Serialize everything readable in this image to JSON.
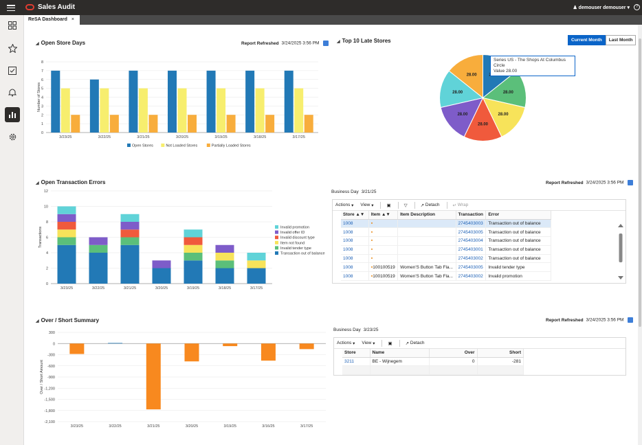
{
  "app": {
    "title": "Sales Audit",
    "user": "demouser demouser",
    "help": "?"
  },
  "tab": {
    "label": "ReSA Dashboard",
    "close": "×"
  },
  "open_store_days": {
    "title": "Open Store Days",
    "refresh_label": "Report Refreshed",
    "refresh_time": "3/24/2025 3:56 PM",
    "chart_data": {
      "type": "bar",
      "categories": [
        "3/23/25",
        "3/22/25",
        "3/21/25",
        "3/20/25",
        "3/19/25",
        "3/18/25",
        "3/17/25"
      ],
      "ylabel": "Number of Stores",
      "ylim": [
        0,
        8
      ],
      "yticks": [
        0,
        1,
        2,
        3,
        4,
        5,
        6,
        7,
        8
      ],
      "series": [
        {
          "name": "Open Stores",
          "color": "#2279b6",
          "values": [
            7,
            6,
            7,
            7,
            7,
            7,
            7
          ]
        },
        {
          "name": "Not Loaded Stores",
          "color": "#f7ee6e",
          "values": [
            5,
            5,
            5,
            5,
            5,
            5,
            5
          ]
        },
        {
          "name": "Partially Loaded Stores",
          "color": "#f8ad3c",
          "values": [
            2,
            2,
            2,
            2,
            2,
            2,
            2
          ]
        }
      ]
    }
  },
  "late_stores": {
    "title": "Top 10 Late Stores",
    "btn_current": "Current Month",
    "btn_last": "Last Month",
    "tooltip_series": "Series  US - The Shops At Columbus  Circle",
    "tooltip_value": "Value  28.00",
    "chart_data": {
      "type": "pie",
      "values": [
        28,
        28,
        28,
        28,
        28,
        28,
        28
      ],
      "labels": [
        "28.00",
        "28.00",
        "28.00",
        "28.00",
        "28.00",
        "28.00",
        "28.00"
      ],
      "colors": [
        "#2279b6",
        "#5bbf7a",
        "#f7e35a",
        "#f05a3c",
        "#7e5cc9",
        "#60d3d8",
        "#f8ad3c"
      ]
    }
  },
  "transaction_errors": {
    "title": "Open Transaction Errors",
    "refresh_label": "Report Refreshed",
    "refresh_time": "3/24/2025 3:56 PM",
    "chart_data": {
      "type": "bar",
      "stacked": true,
      "categories": [
        "3/23/25",
        "3/22/25",
        "3/21/25",
        "3/20/25",
        "3/19/25",
        "3/18/25",
        "3/17/25"
      ],
      "ylabel": "Transactions",
      "ylim": [
        0,
        12
      ],
      "yticks": [
        0,
        2,
        4,
        6,
        8,
        10,
        12
      ],
      "legend_position": "right",
      "series": [
        {
          "name": "Transaction out of balance",
          "color": "#2279b6",
          "values": [
            5,
            4,
            5,
            2,
            3,
            2,
            2
          ]
        },
        {
          "name": "Invalid tender type",
          "color": "#5bbf7a",
          "values": [
            1,
            1,
            1,
            0,
            1,
            1,
            0
          ]
        },
        {
          "name": "Item not found",
          "color": "#f7e35a",
          "values": [
            1,
            0,
            0,
            0,
            1,
            1,
            1
          ]
        },
        {
          "name": "Invalid discount type",
          "color": "#f05a3c",
          "values": [
            1,
            0,
            1,
            0,
            1,
            0,
            0
          ]
        },
        {
          "name": "Invalid offer ID",
          "color": "#7e5cc9",
          "values": [
            1,
            1,
            1,
            1,
            0,
            1,
            0
          ]
        },
        {
          "name": "Invalid promotion",
          "color": "#60d3d8",
          "values": [
            1,
            0,
            1,
            0,
            1,
            0,
            1
          ]
        }
      ]
    },
    "business_day_label": "Business Day",
    "business_day": "3/21/25",
    "toolbar": {
      "actions": "Actions",
      "view": "View",
      "detach": "Detach",
      "wrap": "Wrap"
    },
    "columns": [
      "Store",
      "Item",
      "Item Description",
      "Transaction",
      "Error"
    ],
    "rows": [
      {
        "store": "1008",
        "item": "",
        "desc": "",
        "txn": "2745403003",
        "error": "Transaction out of balance"
      },
      {
        "store": "1008",
        "item": "",
        "desc": "",
        "txn": "2745403005",
        "error": "Transaction out of balance"
      },
      {
        "store": "1008",
        "item": "",
        "desc": "",
        "txn": "2745403004",
        "error": "Transaction out of balance"
      },
      {
        "store": "1008",
        "item": "",
        "desc": "",
        "txn": "2745403001",
        "error": "Transaction out of balance"
      },
      {
        "store": "1008",
        "item": "",
        "desc": "",
        "txn": "2745403002",
        "error": "Transaction out of balance"
      },
      {
        "store": "1008",
        "item": "100100519",
        "desc": "Women'S Button Tab Fla...",
        "txn": "2745403005",
        "error": "Invalid tender type"
      },
      {
        "store": "1008",
        "item": "100100519",
        "desc": "Women'S Button Tab Fla...",
        "txn": "2745403002",
        "error": "Invalid promotion"
      }
    ]
  },
  "over_short": {
    "title": "Over / Short Summary",
    "refresh_label": "Report Refreshed",
    "refresh_time": "3/24/2025 3:56 PM",
    "chart_data": {
      "type": "bar",
      "categories": [
        "3/23/25",
        "3/22/25",
        "3/21/25",
        "3/20/25",
        "3/19/25",
        "3/16/25",
        "3/17/25"
      ],
      "ylabel": "Over / Short Amount",
      "ylim": [
        -2100,
        300
      ],
      "yticks": [
        300,
        0,
        -300,
        -600,
        -900,
        -1200,
        -1500,
        -1800,
        -2100
      ],
      "series": [
        {
          "name": "",
          "color_pos": "#2279b6",
          "color_neg": "#f8891f",
          "values": [
            -281,
            15,
            -1770,
            -480,
            -70,
            -460,
            -150
          ]
        }
      ]
    },
    "business_day_label": "Business Day",
    "business_day": "3/23/25",
    "toolbar": {
      "actions": "Actions",
      "view": "View",
      "detach": "Detach"
    },
    "columns": [
      "Store",
      "Name",
      "Over",
      "Short"
    ],
    "rows": [
      {
        "store": "3211",
        "name": "BE - Wijnegem",
        "over": "0",
        "short": "-281"
      }
    ]
  }
}
